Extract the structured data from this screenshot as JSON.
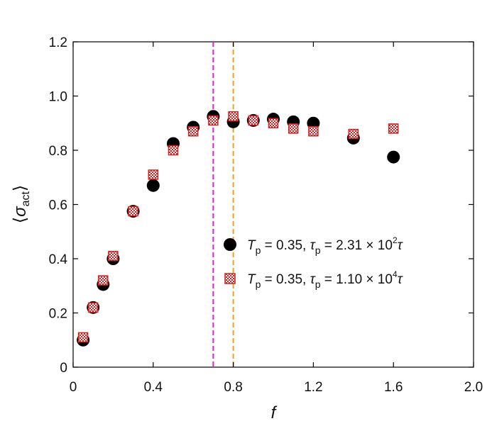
{
  "chart_data": {
    "type": "scatter",
    "title": "",
    "xlabel": "f",
    "ylabel": "⟨σact⟩",
    "xlim": [
      0,
      2.0
    ],
    "ylim": [
      0,
      1.2
    ],
    "xticks": [
      0,
      0.4,
      0.8,
      1.2,
      1.6,
      2.0
    ],
    "xtick_labels": [
      "0",
      "0.4",
      "0.8",
      "1.2",
      "1.6",
      "2.0"
    ],
    "yticks": [
      0,
      0.2,
      0.4,
      0.6,
      0.8,
      1.0,
      1.2
    ],
    "ytick_labels": [
      "0",
      "0.2",
      "0.4",
      "0.6",
      "0.8",
      "1.0",
      "1.2"
    ],
    "grid": false,
    "legend_position": "center-right",
    "vertical_lines": [
      {
        "x": 0.7,
        "color": "#e020e0",
        "style": "dashed"
      },
      {
        "x": 0.8,
        "color": "#f0a020",
        "style": "dashed"
      }
    ],
    "series": [
      {
        "name": "T_p = 0.35, τ_p = 2.31 × 10^2 τ",
        "legend": {
          "T": "T",
          "T_sub": "p",
          "eq1": " = 0.35, ",
          "tau": "τ",
          "tau_sub": "p",
          "eq2": " = 2.31 × 10",
          "exp": "2",
          "tau_end": "τ"
        },
        "marker": "circle",
        "color": "#000000",
        "x": [
          0.05,
          0.1,
          0.15,
          0.2,
          0.3,
          0.4,
          0.5,
          0.6,
          0.7,
          0.8,
          0.9,
          1.0,
          1.1,
          1.2,
          1.4,
          1.6
        ],
        "y": [
          0.1,
          0.22,
          0.305,
          0.4,
          0.575,
          0.67,
          0.825,
          0.885,
          0.925,
          0.905,
          0.91,
          0.915,
          0.905,
          0.9,
          0.845,
          0.775
        ]
      },
      {
        "name": "T_p = 0.35, τ_p = 1.10 × 10^4 τ",
        "legend": {
          "T": "T",
          "T_sub": "p",
          "eq1": " = 0.35, ",
          "tau": "τ",
          "tau_sub": "p",
          "eq2": " = 1.10 × 10",
          "exp": "4",
          "tau_end": "τ"
        },
        "marker": "square",
        "color": "#d42020",
        "x": [
          0.05,
          0.1,
          0.15,
          0.2,
          0.3,
          0.4,
          0.5,
          0.6,
          0.7,
          0.8,
          0.9,
          1.0,
          1.1,
          1.2,
          1.4,
          1.6
        ],
        "y": [
          0.11,
          0.22,
          0.32,
          0.41,
          0.575,
          0.71,
          0.8,
          0.87,
          0.91,
          0.925,
          0.91,
          0.9,
          0.88,
          0.87,
          0.86,
          0.88
        ]
      }
    ]
  }
}
